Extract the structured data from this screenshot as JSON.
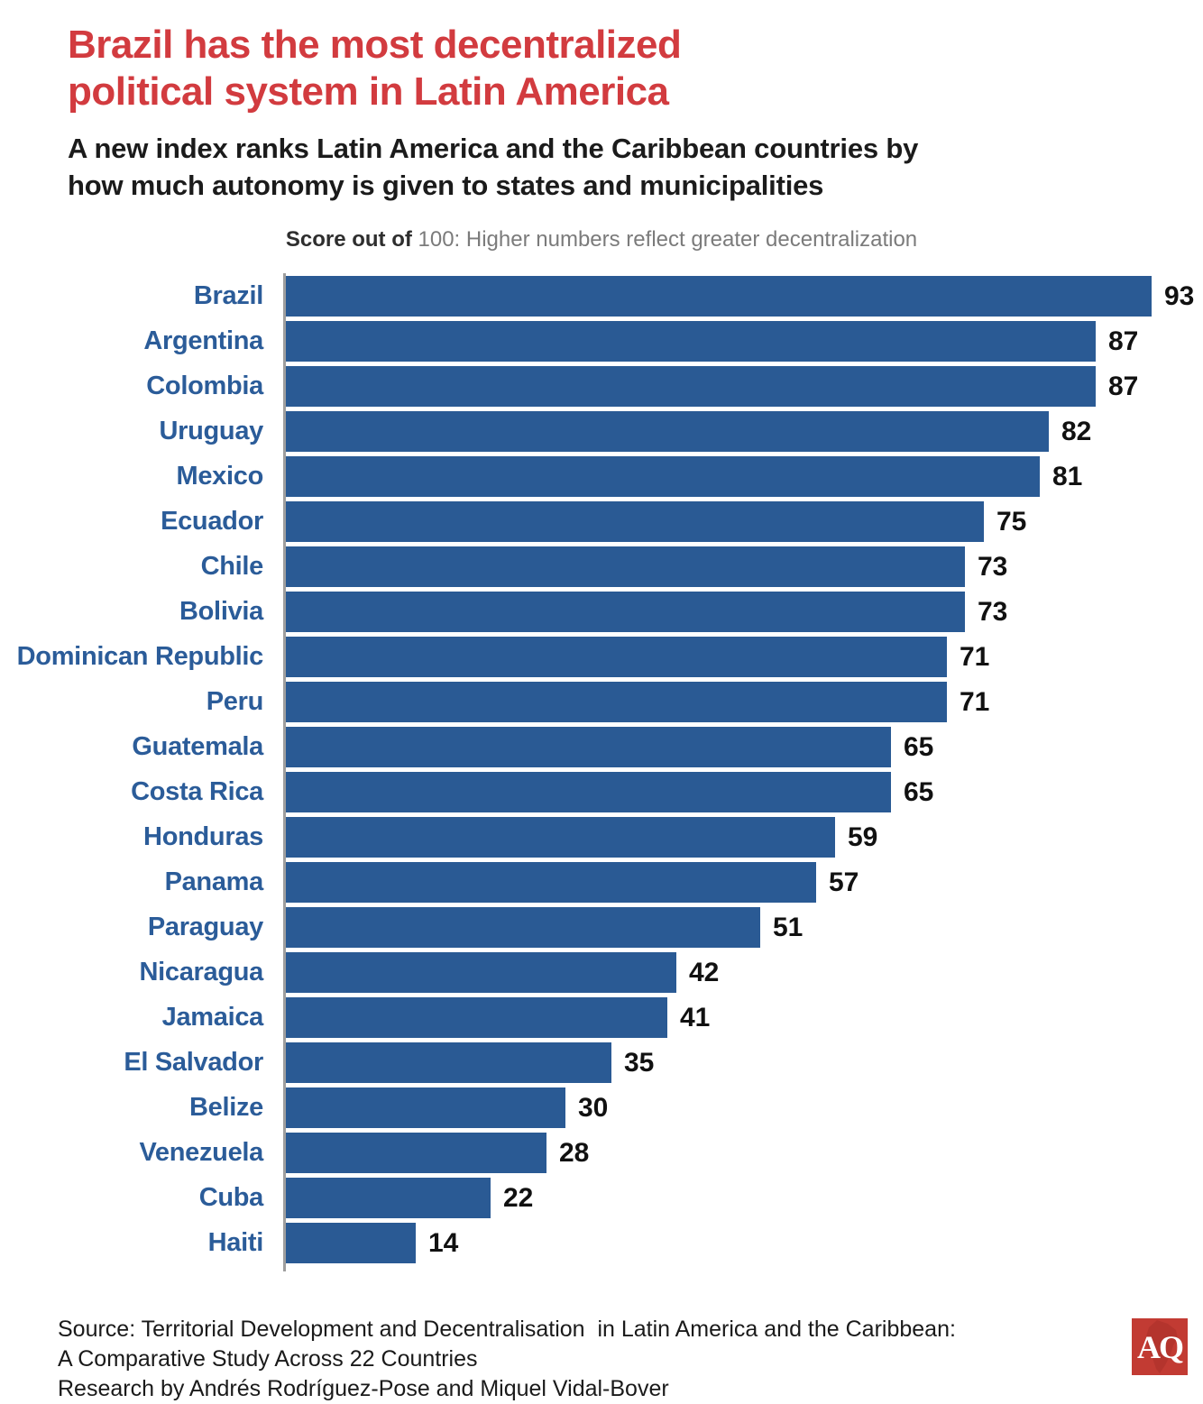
{
  "header": {
    "title_lines": [
      "Brazil has the most decentralized",
      "political system in Latin America"
    ],
    "subtitle_lines": [
      "A new index ranks Latin America and the Caribbean countries by",
      "how much autonomy is given to states and municipalities"
    ]
  },
  "note": {
    "prefix": "Score out of ",
    "rest": "100: Higher numbers reflect greater decentralization"
  },
  "chart_data": {
    "type": "bar",
    "orientation": "horizontal",
    "title": "Score out of 100: Higher numbers reflect greater decentralization",
    "categories": [
      "Brazil",
      "Argentina",
      "Colombia",
      "Uruguay",
      "Mexico",
      "Ecuador",
      "Chile",
      "Bolivia",
      "Dominican Republic",
      "Peru",
      "Guatemala",
      "Costa Rica",
      "Honduras",
      "Panama",
      "Paraguay",
      "Nicaragua",
      "Jamaica",
      "El Salvador",
      "Belize",
      "Venezuela",
      "Cuba",
      "Haiti"
    ],
    "values": [
      93,
      87,
      87,
      82,
      81,
      75,
      73,
      73,
      71,
      71,
      65,
      65,
      59,
      57,
      51,
      42,
      41,
      35,
      30,
      28,
      22,
      14
    ],
    "xlim": [
      0,
      100
    ],
    "value_labels": true,
    "grid": false,
    "legend": false,
    "bar_color": "#2A5A94",
    "category_label_color": "#2B5C99",
    "value_label_color": "#111111"
  },
  "source": {
    "line1": "Source: Territorial Development and Decentralisation  in Latin America and the Caribbean:",
    "line2": "A Comparative Study Across 22 Countries",
    "line3_clipped": "Research by Andrés Rodríguez-Pose and Miquel Vidal-Bover"
  },
  "logo": {
    "text": "AQ"
  },
  "colors": {
    "title_red": "#D23B3F",
    "bar_blue": "#2A5A94",
    "country_blue": "#2B5C99",
    "value_dark": "#111111",
    "note_dark": "#2E2E2E",
    "note_gray": "#7B7B7B",
    "axis_gray": "#9E9E9E",
    "source_dark": "#1A1A1A",
    "logo_red": "#C23B33",
    "logo_map": "#A93028"
  }
}
